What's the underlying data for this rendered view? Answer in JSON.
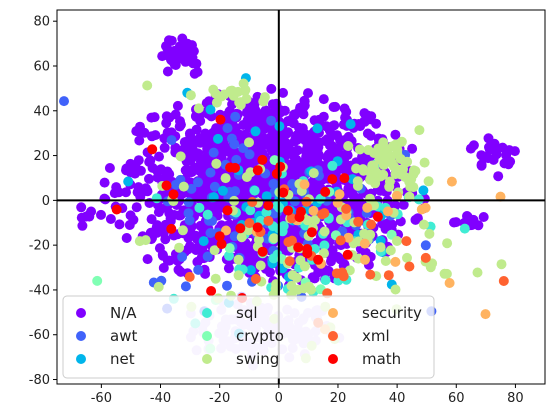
{
  "chart_data": {
    "type": "scatter",
    "title": "",
    "xlabel": "",
    "ylabel": "",
    "xlim": [
      -75,
      90
    ],
    "ylim": [
      -82,
      85
    ],
    "x_ticks": [
      "-60",
      "-40",
      "-20",
      "0",
      "20",
      "40",
      "60",
      "80"
    ],
    "y_ticks": [
      "-80",
      "-60",
      "-40",
      "-20",
      "0",
      "20",
      "40",
      "60",
      "80"
    ],
    "x_tick_values": [
      -60,
      -40,
      -20,
      0,
      20,
      40,
      60,
      80
    ],
    "y_tick_values": [
      -80,
      -60,
      -40,
      -20,
      0,
      20,
      40,
      60,
      80
    ],
    "reference_lines": {
      "x": 0,
      "y": 0
    },
    "grid": false,
    "legend_position": "lower-left",
    "legend_columns": 3,
    "series": [
      {
        "name": "N/A",
        "color": "#8000ff"
      },
      {
        "name": "awt",
        "color": "#4062fa"
      },
      {
        "name": "net",
        "color": "#00b5eb"
      },
      {
        "name": "sql",
        "color": "#40ecd4"
      },
      {
        "name": "crypto",
        "color": "#80ffb4"
      },
      {
        "name": "swing",
        "color": "#c0eb8d"
      },
      {
        "name": "security",
        "color": "#ffb360"
      },
      {
        "name": "xml",
        "color": "#ff6230"
      },
      {
        "name": "math",
        "color": "#ff0000"
      }
    ],
    "clusters": [
      {
        "series": "N/A",
        "cx": -5,
        "cy": 5,
        "sx": 24,
        "sy": 22,
        "n": 1400
      },
      {
        "series": "N/A",
        "cx": -33,
        "cy": 66,
        "sx": 4,
        "sy": 5,
        "n": 40
      },
      {
        "series": "N/A",
        "cx": 73,
        "cy": 21,
        "sx": 4,
        "sy": 4,
        "n": 25
      },
      {
        "series": "N/A",
        "cx": -63,
        "cy": -7,
        "sx": 2,
        "sy": 2,
        "n": 8
      },
      {
        "series": "N/A",
        "cx": 65,
        "cy": -10,
        "sx": 4,
        "sy": 2,
        "n": 12
      },
      {
        "series": "awt",
        "cx": -5,
        "cy": -2,
        "sx": 20,
        "sy": 22,
        "n": 90
      },
      {
        "series": "net",
        "cx": 0,
        "cy": 0,
        "sx": 22,
        "sy": 22,
        "n": 45
      },
      {
        "series": "sql",
        "cx": 5,
        "cy": -12,
        "sx": 22,
        "sy": 18,
        "n": 55
      },
      {
        "series": "crypto",
        "cx": 0,
        "cy": -12,
        "sx": 22,
        "sy": 18,
        "n": 15
      },
      {
        "series": "swing",
        "cx": 38,
        "cy": 15,
        "sx": 6,
        "sy": 6,
        "n": 60
      },
      {
        "series": "swing",
        "cx": -15,
        "cy": 46,
        "sx": 6,
        "sy": 3,
        "n": 20
      },
      {
        "series": "swing",
        "cx": 5,
        "cy": -20,
        "sx": 25,
        "sy": 20,
        "n": 110
      },
      {
        "series": "security",
        "cx": 20,
        "cy": -10,
        "sx": 22,
        "sy": 16,
        "n": 25
      },
      {
        "series": "xml",
        "cx": 10,
        "cy": -20,
        "sx": 20,
        "sy": 16,
        "n": 30
      },
      {
        "series": "math",
        "cx": -5,
        "cy": -2,
        "sx": 22,
        "sy": 18,
        "n": 35
      }
    ],
    "faint_cluster": {
      "cx": -5,
      "cy": -58,
      "sx": 12,
      "sy": 6,
      "n": 120,
      "color": "#d9c7ff"
    }
  }
}
